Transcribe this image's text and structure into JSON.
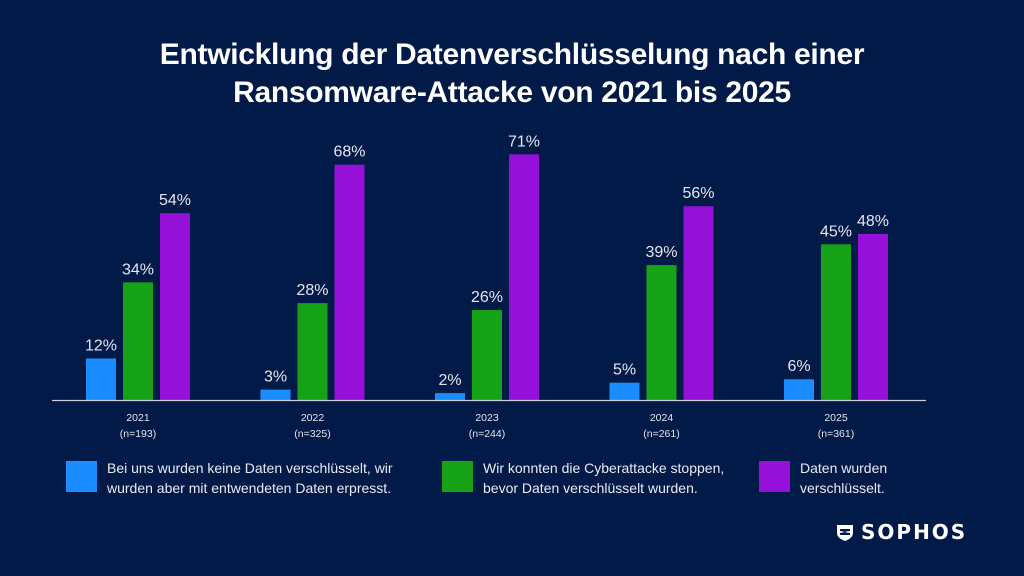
{
  "chart_data": {
    "type": "bar",
    "title": "Entwicklung der Datenverschlüsselung nach einer Ransomware-Attacke von 2021 bis 2025",
    "title_lines": [
      "Entwicklung der Datenverschlüsselung nach einer",
      "Ransomware-Attacke von 2021 bis 2025"
    ],
    "xlabel": "",
    "ylabel": "",
    "ylim": [
      0,
      100
    ],
    "grid": false,
    "categories": [
      "2021",
      "2022",
      "2023",
      "2024",
      "2025"
    ],
    "category_samples": [
      "(n=193)",
      "(n=325)",
      "(n=244)",
      "(n=261)",
      "(n=361)"
    ],
    "series": [
      {
        "name": "Bei uns wurden keine Daten verschlüsselt, wir wurden aber mit entwendeten Daten erpresst.",
        "legend_lines": [
          "Bei uns wurden keine Daten verschlüsselt, wir",
          "wurden aber mit entwendeten Daten erpresst."
        ],
        "color": "#1a8cff",
        "values": [
          12,
          3,
          2,
          5,
          6
        ]
      },
      {
        "name": "Wir konnten die Cyberattacke stoppen, bevor Daten verschlüsselt wurden.",
        "legend_lines": [
          "Wir konnten die Cyberattacke stoppen,",
          "bevor Daten verschlüsselt wurden."
        ],
        "color": "#16a216",
        "values": [
          34,
          28,
          26,
          39,
          45
        ]
      },
      {
        "name": "Daten wurden verschlüsselt.",
        "legend_lines": [
          "Daten wurden",
          "verschlüsselt."
        ],
        "color": "#9510d8",
        "values": [
          54,
          68,
          71,
          56,
          48
        ]
      }
    ],
    "value_suffix": "%",
    "legend_position": "bottom"
  },
  "brand": {
    "name": "SOPHOS",
    "background": "#021a48",
    "axis_color": "#c9cfdc"
  }
}
